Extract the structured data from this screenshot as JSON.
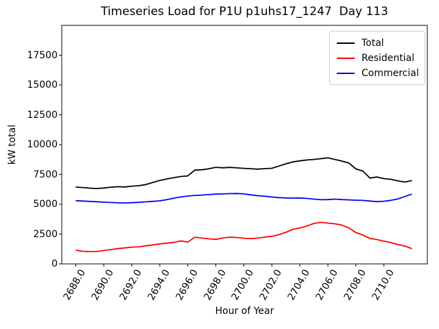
{
  "chart_data": {
    "type": "line",
    "title": "Timeseries Load for P1U p1uhs17_1247  Day 113",
    "xlabel": "Hour of Year",
    "ylabel": "kW total",
    "xlim": [
      2687.0,
      2713.1
    ],
    "ylim": [
      0,
      20000
    ],
    "grid": false,
    "legend_position": "upper right",
    "x_tick_labels": [
      "2688.0",
      "2690.0",
      "2692.0",
      "2694.0",
      "2696.0",
      "2698.0",
      "2700.0",
      "2702.0",
      "2704.0",
      "2706.0",
      "2708.0",
      "2710.0"
    ],
    "x_tick_values": [
      2688,
      2690,
      2692,
      2694,
      2696,
      2698,
      2700,
      2702,
      2704,
      2706,
      2708,
      2710
    ],
    "y_tick_labels": [
      "0",
      "2500",
      "5000",
      "7500",
      "10000",
      "12500",
      "15000",
      "17500"
    ],
    "y_tick_values": [
      0,
      2500,
      5000,
      7500,
      10000,
      12500,
      15000,
      17500
    ],
    "x": [
      2688,
      2688.5,
      2689,
      2689.5,
      2690,
      2690.5,
      2691,
      2691.5,
      2692,
      2692.5,
      2693,
      2693.5,
      2694,
      2694.5,
      2695,
      2695.5,
      2696,
      2696.5,
      2697,
      2697.5,
      2698,
      2698.5,
      2699,
      2699.5,
      2700,
      2700.5,
      2701,
      2701.5,
      2702,
      2702.5,
      2703,
      2703.5,
      2704,
      2704.5,
      2705,
      2705.5,
      2706,
      2706.5,
      2707,
      2707.5,
      2708,
      2708.5,
      2709,
      2709.5,
      2710,
      2710.5,
      2711,
      2711.5,
      2712
    ],
    "series": [
      {
        "name": "Total",
        "color": "#000000",
        "values": [
          6440,
          6400,
          6350,
          6320,
          6360,
          6430,
          6470,
          6450,
          6520,
          6560,
          6650,
          6820,
          7000,
          7120,
          7230,
          7330,
          7380,
          7860,
          7890,
          7970,
          8100,
          8060,
          8090,
          8050,
          8010,
          7980,
          7940,
          7990,
          8020,
          8200,
          8390,
          8550,
          8640,
          8710,
          8760,
          8820,
          8890,
          8760,
          8620,
          8460,
          7960,
          7780,
          7190,
          7290,
          7150,
          7090,
          6960,
          6860,
          7000
        ]
      },
      {
        "name": "Residential",
        "color": "#ff0000",
        "values": [
          1150,
          1060,
          1030,
          1040,
          1120,
          1200,
          1280,
          1340,
          1400,
          1430,
          1510,
          1590,
          1670,
          1740,
          1800,
          1930,
          1830,
          2240,
          2160,
          2100,
          2060,
          2180,
          2240,
          2210,
          2150,
          2120,
          2160,
          2250,
          2310,
          2450,
          2650,
          2900,
          3010,
          3180,
          3390,
          3480,
          3420,
          3360,
          3250,
          3020,
          2620,
          2420,
          2140,
          2040,
          1900,
          1790,
          1620,
          1500,
          1270
        ]
      },
      {
        "name": "Commercial",
        "color": "#0000ff",
        "values": [
          5300,
          5270,
          5240,
          5210,
          5170,
          5150,
          5120,
          5110,
          5130,
          5160,
          5200,
          5240,
          5290,
          5390,
          5510,
          5610,
          5690,
          5740,
          5770,
          5810,
          5850,
          5870,
          5890,
          5900,
          5870,
          5790,
          5720,
          5670,
          5610,
          5560,
          5530,
          5520,
          5530,
          5490,
          5430,
          5380,
          5390,
          5430,
          5390,
          5370,
          5340,
          5320,
          5270,
          5220,
          5250,
          5330,
          5450,
          5650,
          5850
        ]
      }
    ]
  }
}
